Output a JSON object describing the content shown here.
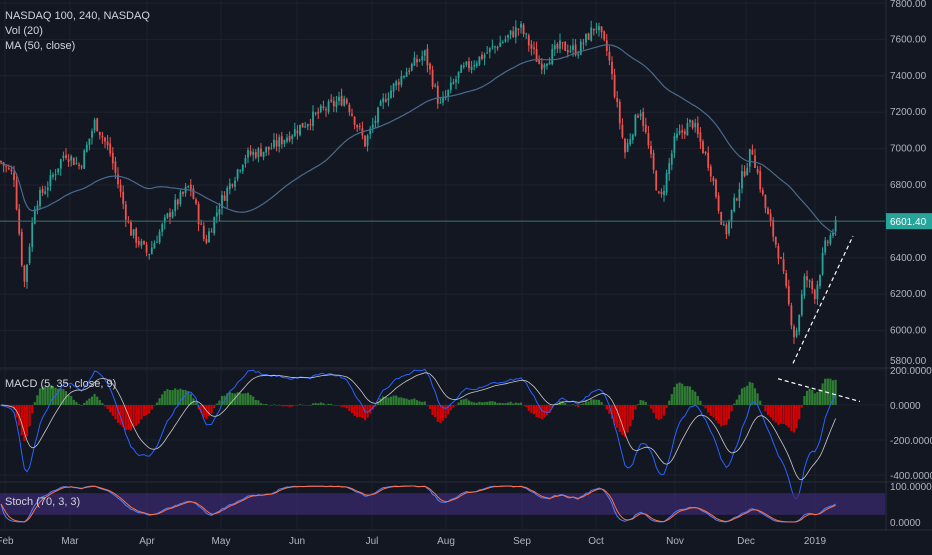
{
  "header": {
    "symbol_line": "NASDAQ 100, 240, NASDAQ",
    "vol_line": "Vol (20)",
    "ma_line": "MA (50, close)"
  },
  "macd_pane": {
    "label": "MACD (5, 35, close, 9)"
  },
  "stoch_pane": {
    "label": "Stoch (70, 3, 3)"
  },
  "price_badge": "6601.40",
  "colors": {
    "background": "#131722",
    "grid": "#1e222d",
    "up": "#26a69a",
    "down": "#ef5350",
    "ma": "#4a6a8f",
    "macd_line": "#2962ff",
    "signal_line": "#c9c9c9",
    "hist_pos": "#2e7d32",
    "hist_neg": "#d50000",
    "stoch_k": "#4f80ff",
    "stoch_d": "#ff7043",
    "stoch_band": "#3a2a6e",
    "badge": "#26a69a",
    "trendline": "#ffffff"
  },
  "chart_data": [
    {
      "type": "candlestick",
      "title": "NASDAQ 100, 240, NASDAQ",
      "overlays": [
        "MA (50, close)"
      ],
      "y_ticks": [
        "5800.00",
        "6000.00",
        "6200.00",
        "6400.00",
        "6600.00",
        "6800.00",
        "7000.00",
        "7200.00",
        "7400.00",
        "7600.00",
        "7800.00"
      ],
      "ylim": [
        5800,
        7800
      ],
      "x_ticks": [
        "Feb",
        "Mar",
        "Apr",
        "May",
        "Jun",
        "Jul",
        "Aug",
        "Sep",
        "Oct",
        "Nov",
        "Dec",
        "2019"
      ],
      "last_price": 6601.4,
      "close_path_monthly": {
        "x": [
          "Feb",
          "Mar",
          "Apr",
          "May",
          "Jun",
          "Jul",
          "Aug",
          "Sep",
          "Oct",
          "Nov",
          "Dec",
          "2019"
        ],
        "approx_close": [
          6900,
          6950,
          6400,
          6700,
          6980,
          7150,
          7380,
          7580,
          7620,
          6700,
          6900,
          6300
        ]
      },
      "extremes": {
        "high_approx": 7690,
        "low_approx": 5900
      },
      "annotations": [
        "dashed rising trendline from late Dec low",
        "horizontal line at last price"
      ],
      "grid": true
    },
    {
      "type": "line",
      "title": "MACD (5, 35, close, 9)",
      "series": [
        {
          "name": "MACD"
        },
        {
          "name": "Signal"
        },
        {
          "name": "Histogram"
        }
      ],
      "y_ticks": [
        "200.0000",
        "0.0000",
        "-200.0000",
        "-400.0000"
      ],
      "ylim": [
        -420,
        220
      ],
      "annotations": [
        "dashed falling trendline across recent MACD peaks"
      ]
    },
    {
      "type": "line",
      "title": "Stoch (70, 3, 3)",
      "series": [
        {
          "name": "%K"
        },
        {
          "name": "%D"
        }
      ],
      "y_ticks": [
        "100.0000",
        "0.0000"
      ],
      "ylim": [
        0,
        100
      ],
      "band": [
        20,
        80
      ]
    }
  ]
}
